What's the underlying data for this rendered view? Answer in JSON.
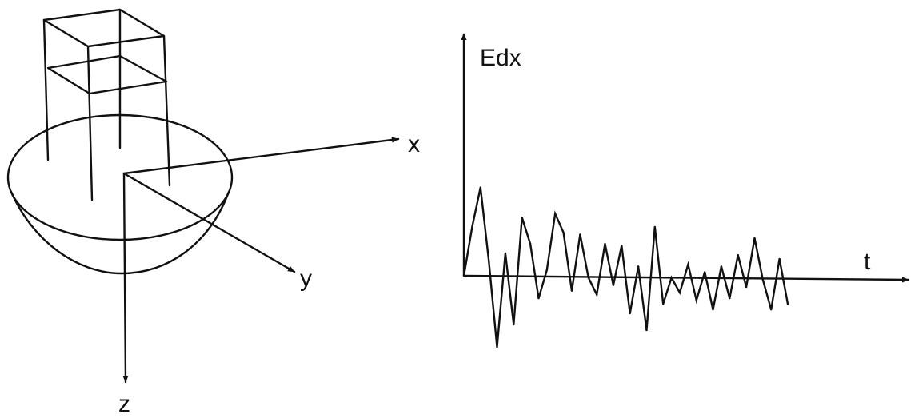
{
  "left_figure": {
    "axes": {
      "x_label": "x",
      "y_label": "y",
      "z_label": "z"
    }
  },
  "right_figure": {
    "y_axis_label": "Edx",
    "t_axis_label": "t"
  },
  "chart_data": {
    "type": "line",
    "title": "",
    "xlabel": "t",
    "ylabel": "Edx",
    "grid": false,
    "series": [
      {
        "values": [
          0,
          26,
          47,
          8,
          -38,
          12,
          -26,
          31,
          17,
          -12,
          3,
          33,
          23,
          -8,
          22,
          -1,
          -10,
          17,
          -5,
          16,
          -20,
          5,
          -29,
          26,
          -15,
          -1,
          -9,
          6,
          -13,
          2,
          -18,
          5,
          -12,
          11,
          -6,
          20,
          -2,
          -18,
          9,
          -15
        ]
      }
    ]
  }
}
